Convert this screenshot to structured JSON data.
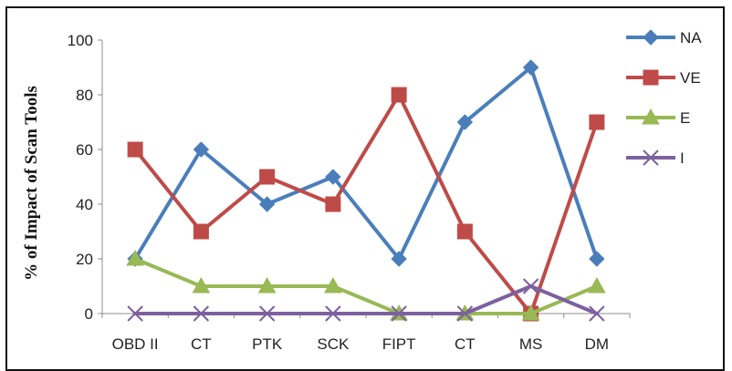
{
  "chart_data": {
    "type": "line",
    "title": "",
    "xlabel": "",
    "ylabel": "% of Impact of Scan Tools",
    "categories": [
      "OBD II",
      "CT",
      "PTK",
      "SCK",
      "FIPT",
      "CT",
      "MS",
      "DM"
    ],
    "ylim": [
      0,
      100
    ],
    "yticks": [
      0,
      20,
      40,
      60,
      80,
      100
    ],
    "grid": false,
    "legend_position": "right",
    "series": [
      {
        "name": "NA",
        "color": "#4a7ebb",
        "marker": "diamond",
        "values": [
          20,
          60,
          40,
          50,
          20,
          70,
          90,
          20
        ]
      },
      {
        "name": "VE",
        "color": "#be4b48",
        "marker": "square",
        "values": [
          60,
          30,
          50,
          40,
          80,
          30,
          0,
          70
        ]
      },
      {
        "name": "E",
        "color": "#98b954",
        "marker": "triangle",
        "values": [
          20,
          10,
          10,
          10,
          0,
          0,
          0,
          10
        ]
      },
      {
        "name": "I",
        "color": "#7d60a0",
        "marker": "x",
        "values": [
          0,
          0,
          0,
          0,
          0,
          0,
          10,
          0
        ]
      }
    ]
  }
}
